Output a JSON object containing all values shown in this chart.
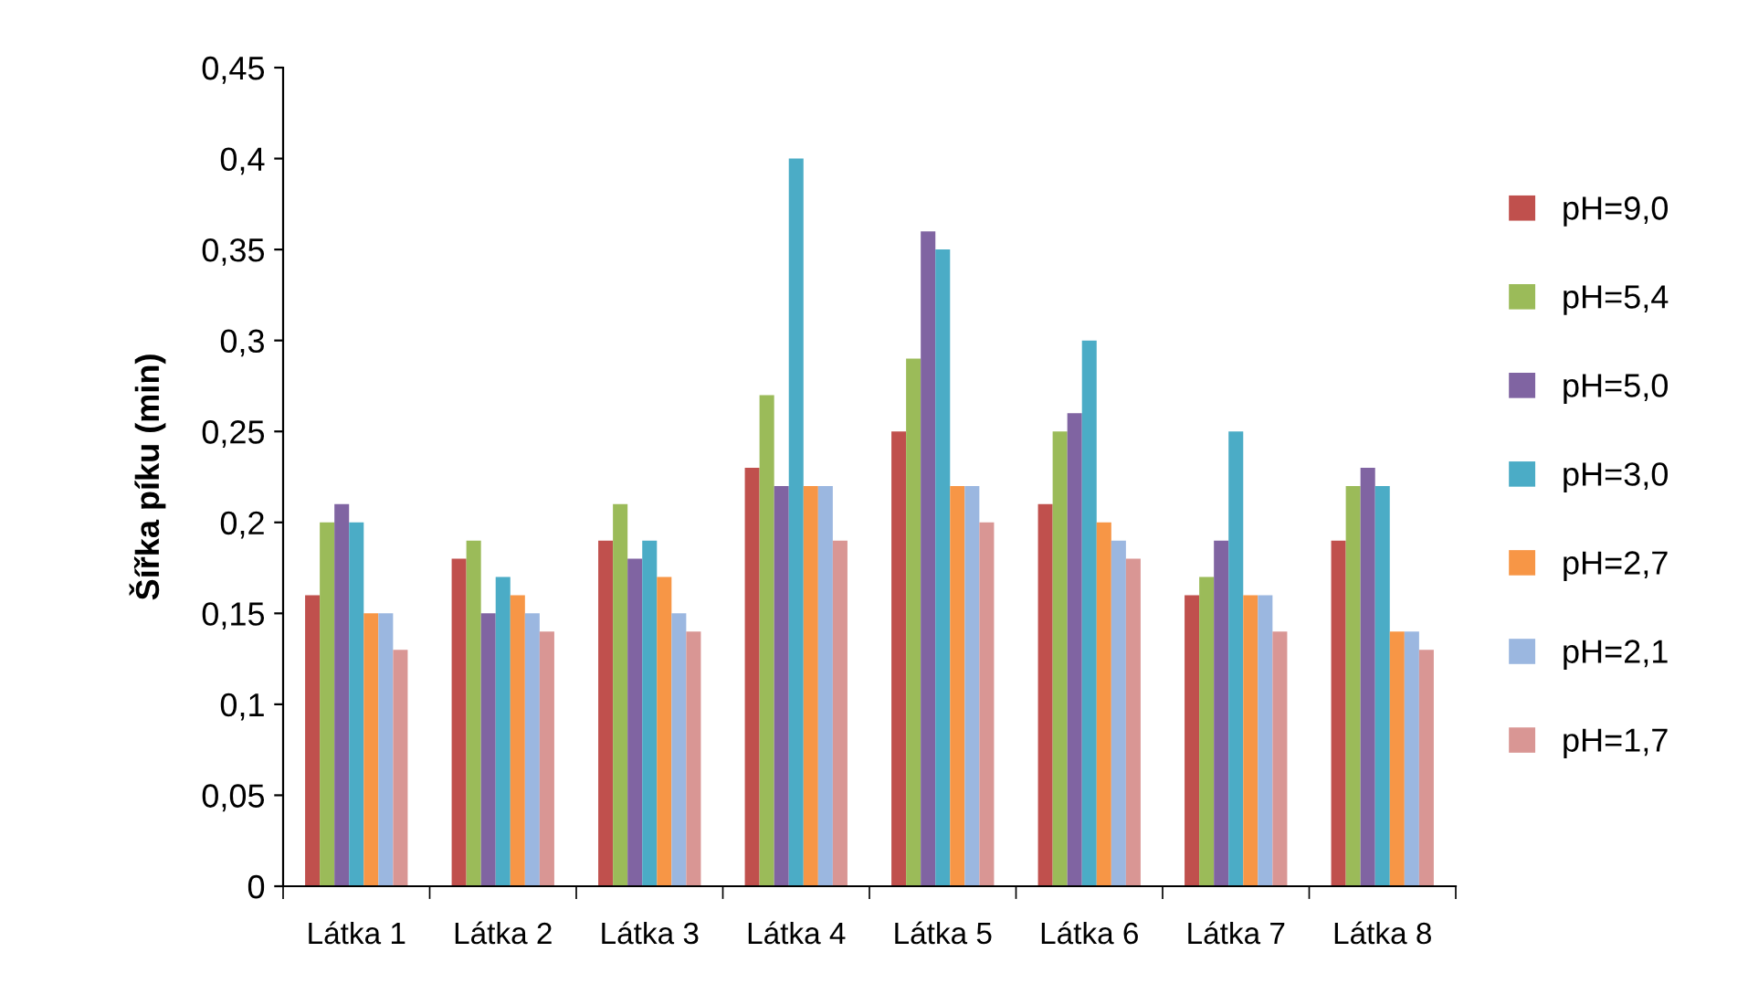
{
  "chart_data": {
    "type": "bar",
    "ylabel": "Šířka píku (min)",
    "categories": [
      "Látka 1",
      "Látka 2",
      "Látka 3",
      "Látka 4",
      "Látka 5",
      "Látka 6",
      "Látka 7",
      "Látka 8"
    ],
    "series": [
      {
        "name": "pH=9,0",
        "color": "#c0504d",
        "values": [
          0.16,
          0.18,
          0.19,
          0.23,
          0.25,
          0.21,
          0.16,
          0.19
        ]
      },
      {
        "name": "pH=5,4",
        "color": "#9bbb59",
        "values": [
          0.2,
          0.19,
          0.21,
          0.27,
          0.29,
          0.25,
          0.17,
          0.22
        ]
      },
      {
        "name": "pH=5,0",
        "color": "#8064a2",
        "values": [
          0.21,
          0.15,
          0.18,
          0.22,
          0.36,
          0.26,
          0.19,
          0.23
        ]
      },
      {
        "name": "pH=3,0",
        "color": "#4bacc6",
        "values": [
          0.2,
          0.17,
          0.19,
          0.4,
          0.35,
          0.3,
          0.25,
          0.22
        ]
      },
      {
        "name": "pH=2,7",
        "color": "#f79646",
        "values": [
          0.15,
          0.16,
          0.17,
          0.22,
          0.22,
          0.2,
          0.16,
          0.14
        ]
      },
      {
        "name": "pH=2,1",
        "color": "#9bb7e0",
        "values": [
          0.15,
          0.15,
          0.15,
          0.22,
          0.22,
          0.19,
          0.16,
          0.14
        ]
      },
      {
        "name": "pH=1,7",
        "color": "#d99694",
        "values": [
          0.13,
          0.14,
          0.14,
          0.19,
          0.2,
          0.18,
          0.14,
          0.13
        ]
      }
    ],
    "ylim": [
      0,
      0.45
    ],
    "yticks": [
      0,
      {
        "value": 0.05,
        "label": "0,05"
      },
      {
        "value": 0.1,
        "label": "0,1"
      },
      {
        "value": 0.15,
        "label": "0,15"
      },
      {
        "value": 0.2,
        "label": "0,2"
      },
      {
        "value": 0.25,
        "label": "0,25"
      },
      {
        "value": 0.3,
        "label": "0,3"
      },
      {
        "value": 0.35,
        "label": "0,35"
      },
      {
        "value": 0.4,
        "label": "0,4"
      },
      {
        "value": 0.45,
        "label": "0,45"
      }
    ],
    "legend": "right",
    "grid": false
  }
}
